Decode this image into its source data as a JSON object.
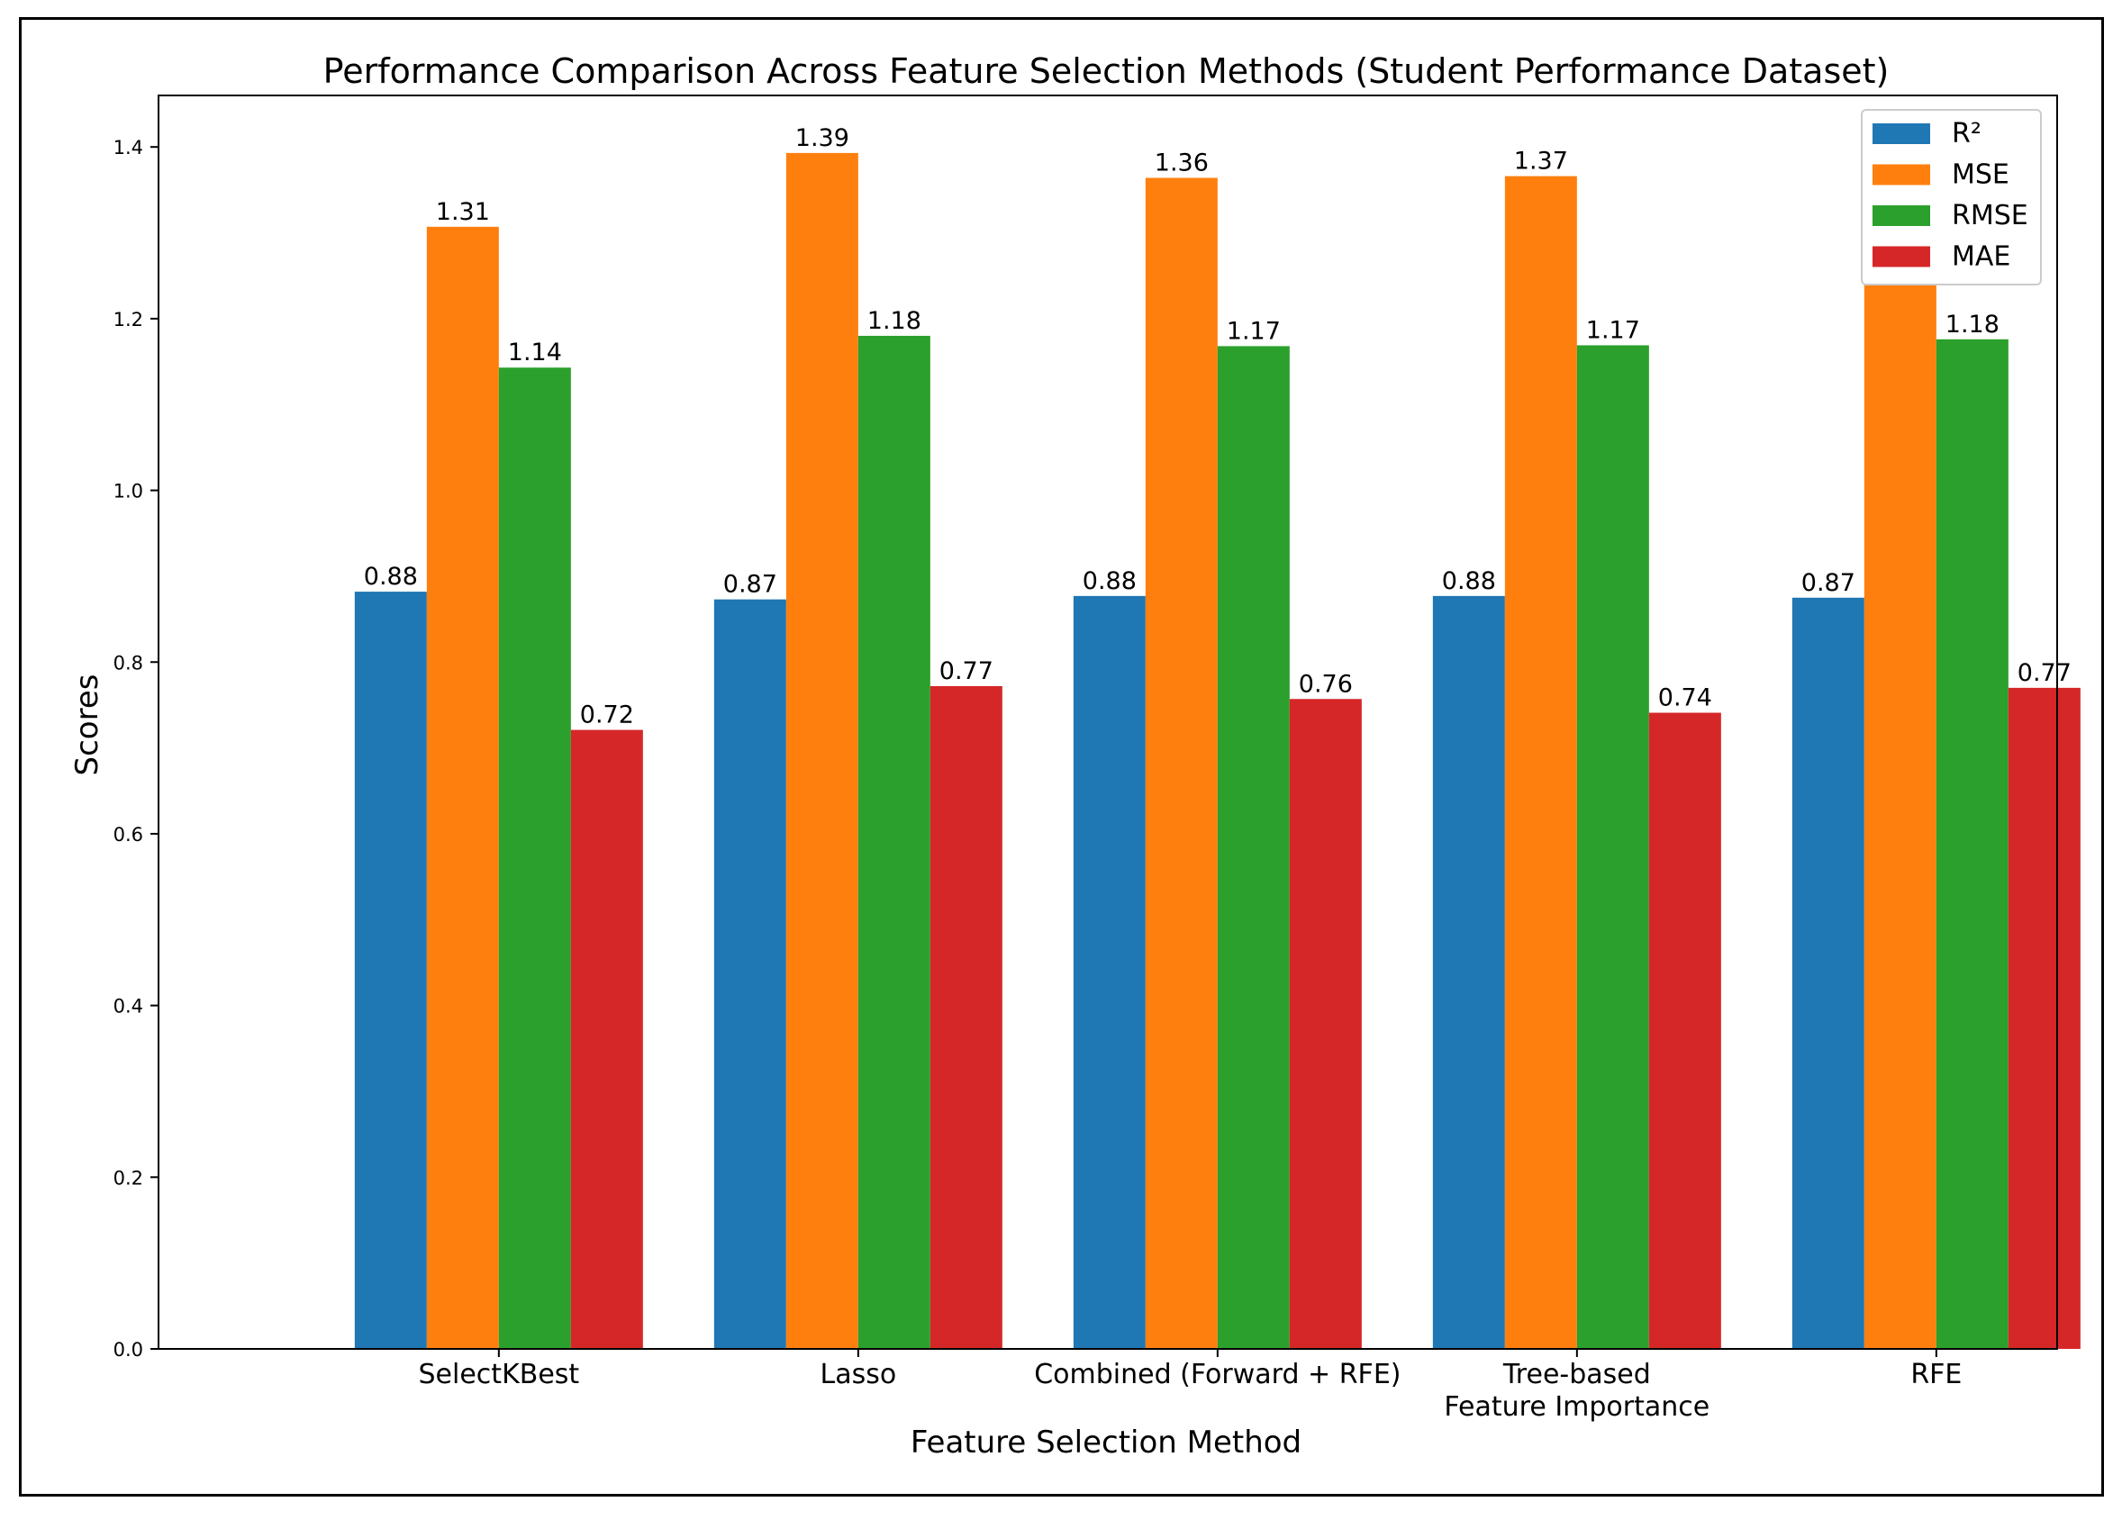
{
  "chart_data": {
    "type": "bar",
    "title": "Performance Comparison Across Feature Selection Methods (Student Performance Dataset)",
    "xlabel": "Feature Selection Method",
    "ylabel": "Scores",
    "ylim": [
      0,
      1.46
    ],
    "yticks": [
      "0.0",
      "0.2",
      "0.4",
      "0.6",
      "0.8",
      "1.0",
      "1.2",
      "1.4"
    ],
    "grid": false,
    "legend_position": "top-right",
    "categories": [
      "SelectKBest",
      "Lasso",
      "Combined (Forward + RFE)",
      "Tree-based\nFeature Importance",
      "RFE"
    ],
    "series": [
      {
        "name": "R²",
        "color": "#1f77b4",
        "values": [
          0.882,
          0.873,
          0.877,
          0.877,
          0.875
        ],
        "labels": [
          "0.88",
          "0.87",
          "0.88",
          "0.88",
          "0.87"
        ]
      },
      {
        "name": "MSE",
        "color": "#ff7f0e",
        "values": [
          1.307,
          1.393,
          1.364,
          1.366,
          1.382
        ],
        "labels": [
          "1.31",
          "1.39",
          "1.36",
          "1.37",
          "1.38"
        ]
      },
      {
        "name": "RMSE",
        "color": "#2ca02c",
        "values": [
          1.143,
          1.18,
          1.168,
          1.169,
          1.176
        ],
        "labels": [
          "1.14",
          "1.18",
          "1.17",
          "1.17",
          "1.18"
        ]
      },
      {
        "name": "MAE",
        "color": "#d62728",
        "values": [
          0.721,
          0.772,
          0.757,
          0.741,
          0.77
        ],
        "labels": [
          "0.72",
          "0.77",
          "0.76",
          "0.74",
          "0.77"
        ]
      }
    ]
  }
}
